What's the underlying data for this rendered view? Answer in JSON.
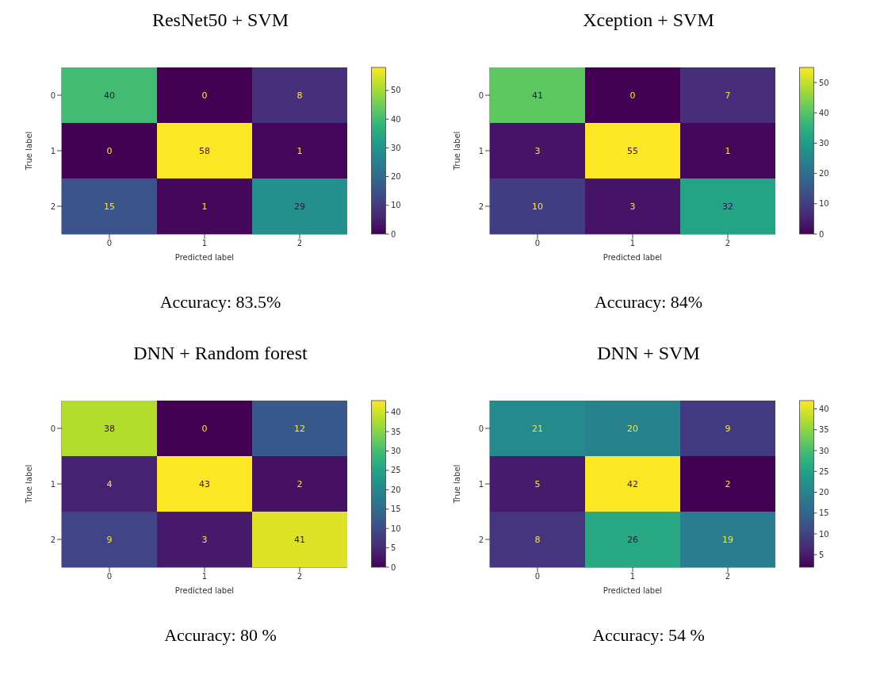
{
  "chart_data": [
    {
      "type": "heatmap",
      "title": "ResNet50 + SVM",
      "xlabel": "Predicted label",
      "ylabel": "True label",
      "categories": [
        "0",
        "1",
        "2"
      ],
      "y_categories": [
        "0",
        "1",
        "2"
      ],
      "cells": [
        [
          40,
          0,
          8
        ],
        [
          0,
          58,
          1
        ],
        [
          15,
          1,
          29
        ]
      ],
      "clim": [
        0,
        58
      ],
      "cticks": [
        0,
        10,
        20,
        30,
        40,
        50
      ],
      "data_labels": true,
      "annotations": [
        "Accuracy: 83.5%"
      ]
    },
    {
      "type": "heatmap",
      "title": "Xception + SVM",
      "xlabel": "Predicted label",
      "ylabel": "True label",
      "categories": [
        "0",
        "1",
        "2"
      ],
      "y_categories": [
        "0",
        "1",
        "2"
      ],
      "cells": [
        [
          41,
          0,
          7
        ],
        [
          3,
          55,
          1
        ],
        [
          10,
          3,
          32
        ]
      ],
      "clim": [
        0,
        55
      ],
      "cticks": [
        0,
        10,
        20,
        30,
        40,
        50
      ],
      "data_labels": true,
      "annotations": [
        "Accuracy: 84%"
      ]
    },
    {
      "type": "heatmap",
      "title": "DNN + Random forest",
      "xlabel": "Predicted label",
      "ylabel": "True label",
      "categories": [
        "0",
        "1",
        "2"
      ],
      "y_categories": [
        "0",
        "1",
        "2"
      ],
      "cells": [
        [
          38,
          0,
          12
        ],
        [
          4,
          43,
          2
        ],
        [
          9,
          3,
          41
        ]
      ],
      "clim": [
        0,
        43
      ],
      "cticks": [
        0,
        5,
        10,
        15,
        20,
        25,
        30,
        35,
        40
      ],
      "data_labels": true,
      "annotations": [
        "Accuracy: 80 %"
      ]
    },
    {
      "type": "heatmap",
      "title": "DNN + SVM",
      "xlabel": "Predicted label",
      "ylabel": "True label",
      "categories": [
        "0",
        "1",
        "2"
      ],
      "y_categories": [
        "0",
        "1",
        "2"
      ],
      "cells": [
        [
          21,
          20,
          9
        ],
        [
          5,
          42,
          2
        ],
        [
          8,
          26,
          19
        ]
      ],
      "clim": [
        2,
        42
      ],
      "cticks": [
        5,
        10,
        15,
        20,
        25,
        30,
        35,
        40
      ],
      "data_labels": true,
      "annotations": [
        "Accuracy: 54 %"
      ]
    }
  ]
}
